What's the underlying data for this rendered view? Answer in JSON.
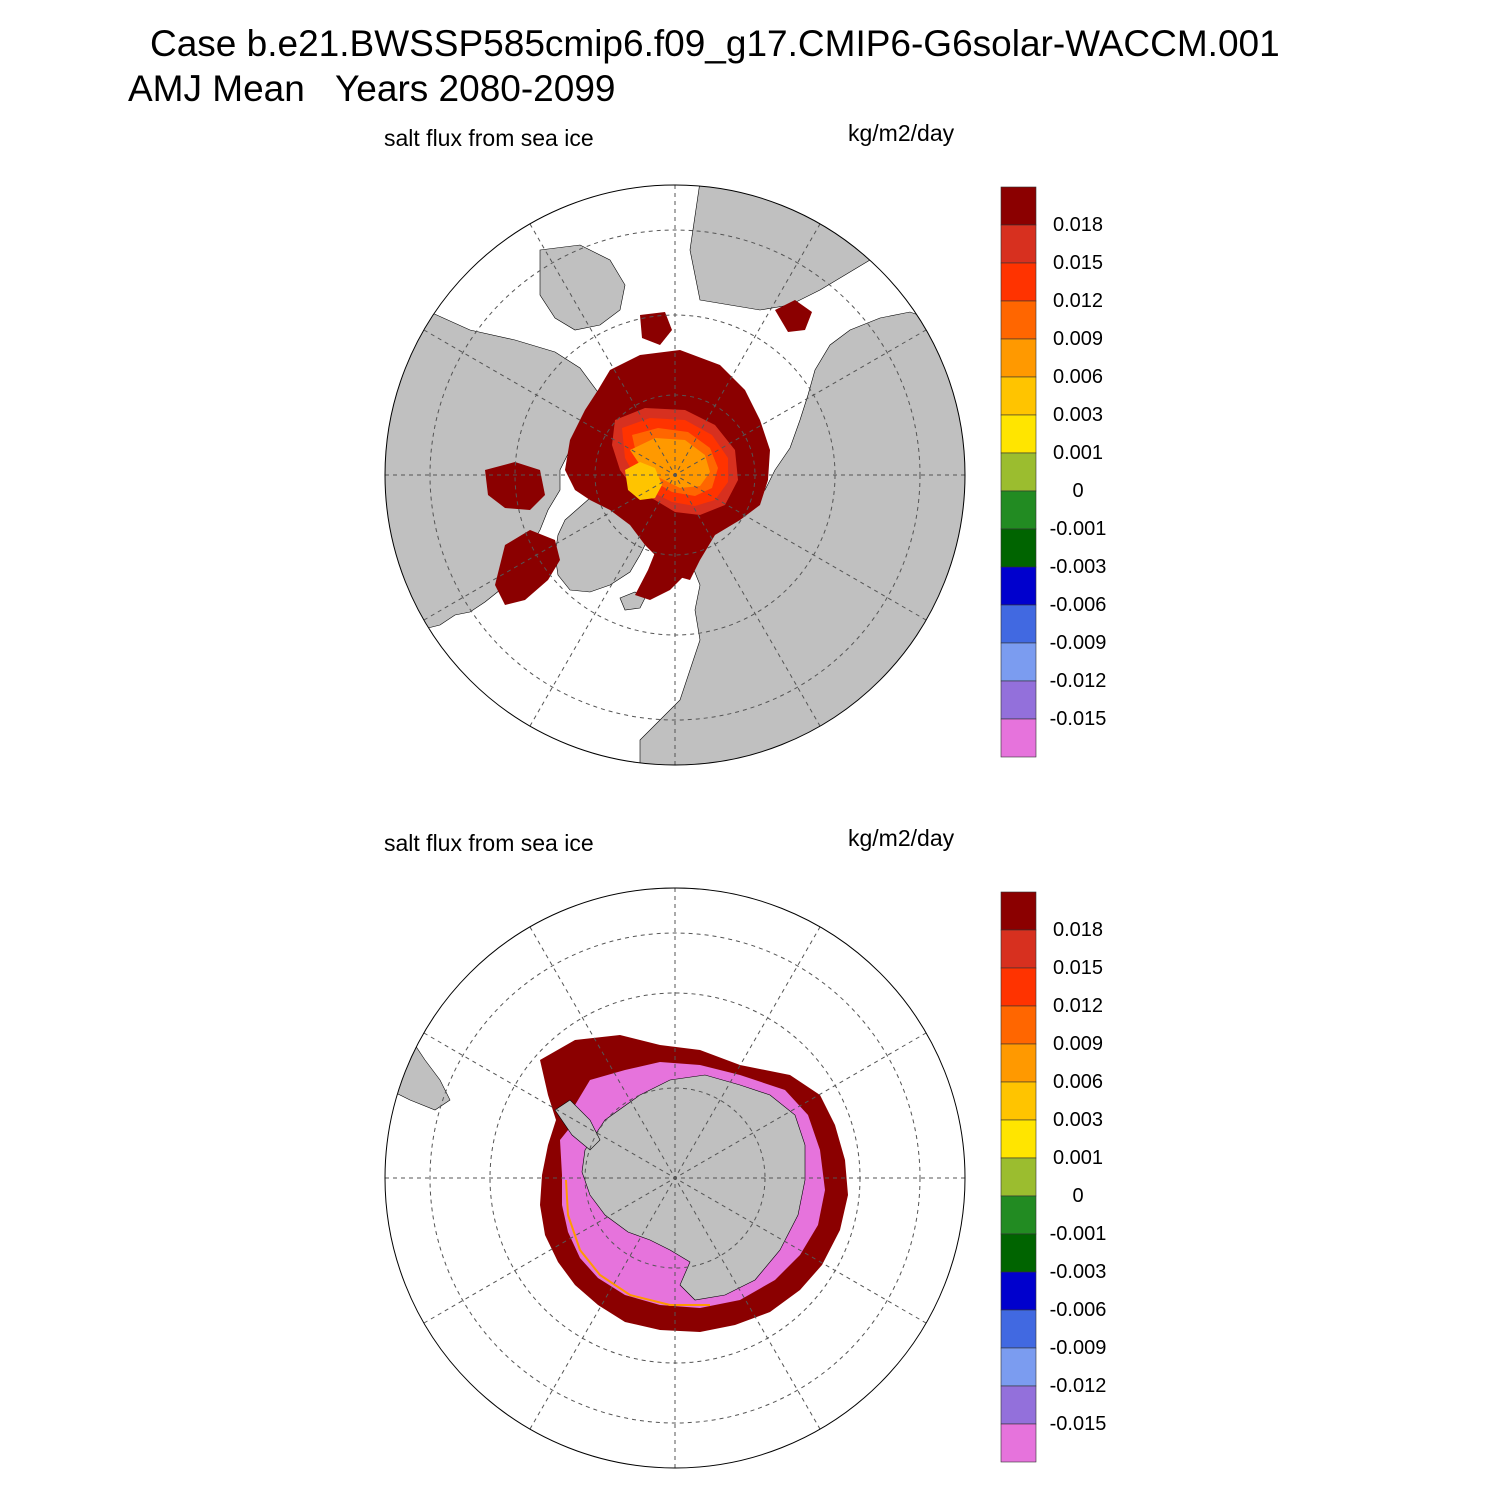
{
  "title": {
    "line1": "Case b.e21.BWSSP585cmip6.f09_g17.CMIP6-G6solar-WACCM.001",
    "line2": "AMJ Mean   Years 2080-2099"
  },
  "panels": [
    {
      "id": "north",
      "variable_label": "salt flux from sea ice",
      "units_label": "kg/m2/day"
    },
    {
      "id": "south",
      "variable_label": "salt flux from sea ice",
      "units_label": "kg/m2/day"
    }
  ],
  "colorbar": {
    "labels": [
      "0.018",
      "0.015",
      "0.012",
      "0.009",
      "0.006",
      "0.003",
      "0.001",
      "0",
      "-0.001",
      "-0.003",
      "-0.006",
      "-0.009",
      "-0.012",
      "-0.015"
    ],
    "colors": [
      "#8b0000",
      "#d7301f",
      "#ff3300",
      "#ff6600",
      "#ff9900",
      "#ffc400",
      "#ffe500",
      "#9bbd2f",
      "#228b22",
      "#006400",
      "#0000cd",
      "#4169e1",
      "#7b9cf0",
      "#9370db",
      "#e673dc"
    ]
  },
  "colors": {
    "land": "#c0c0c0",
    "ocean": "#ffffff",
    "grid": "#555555"
  }
}
